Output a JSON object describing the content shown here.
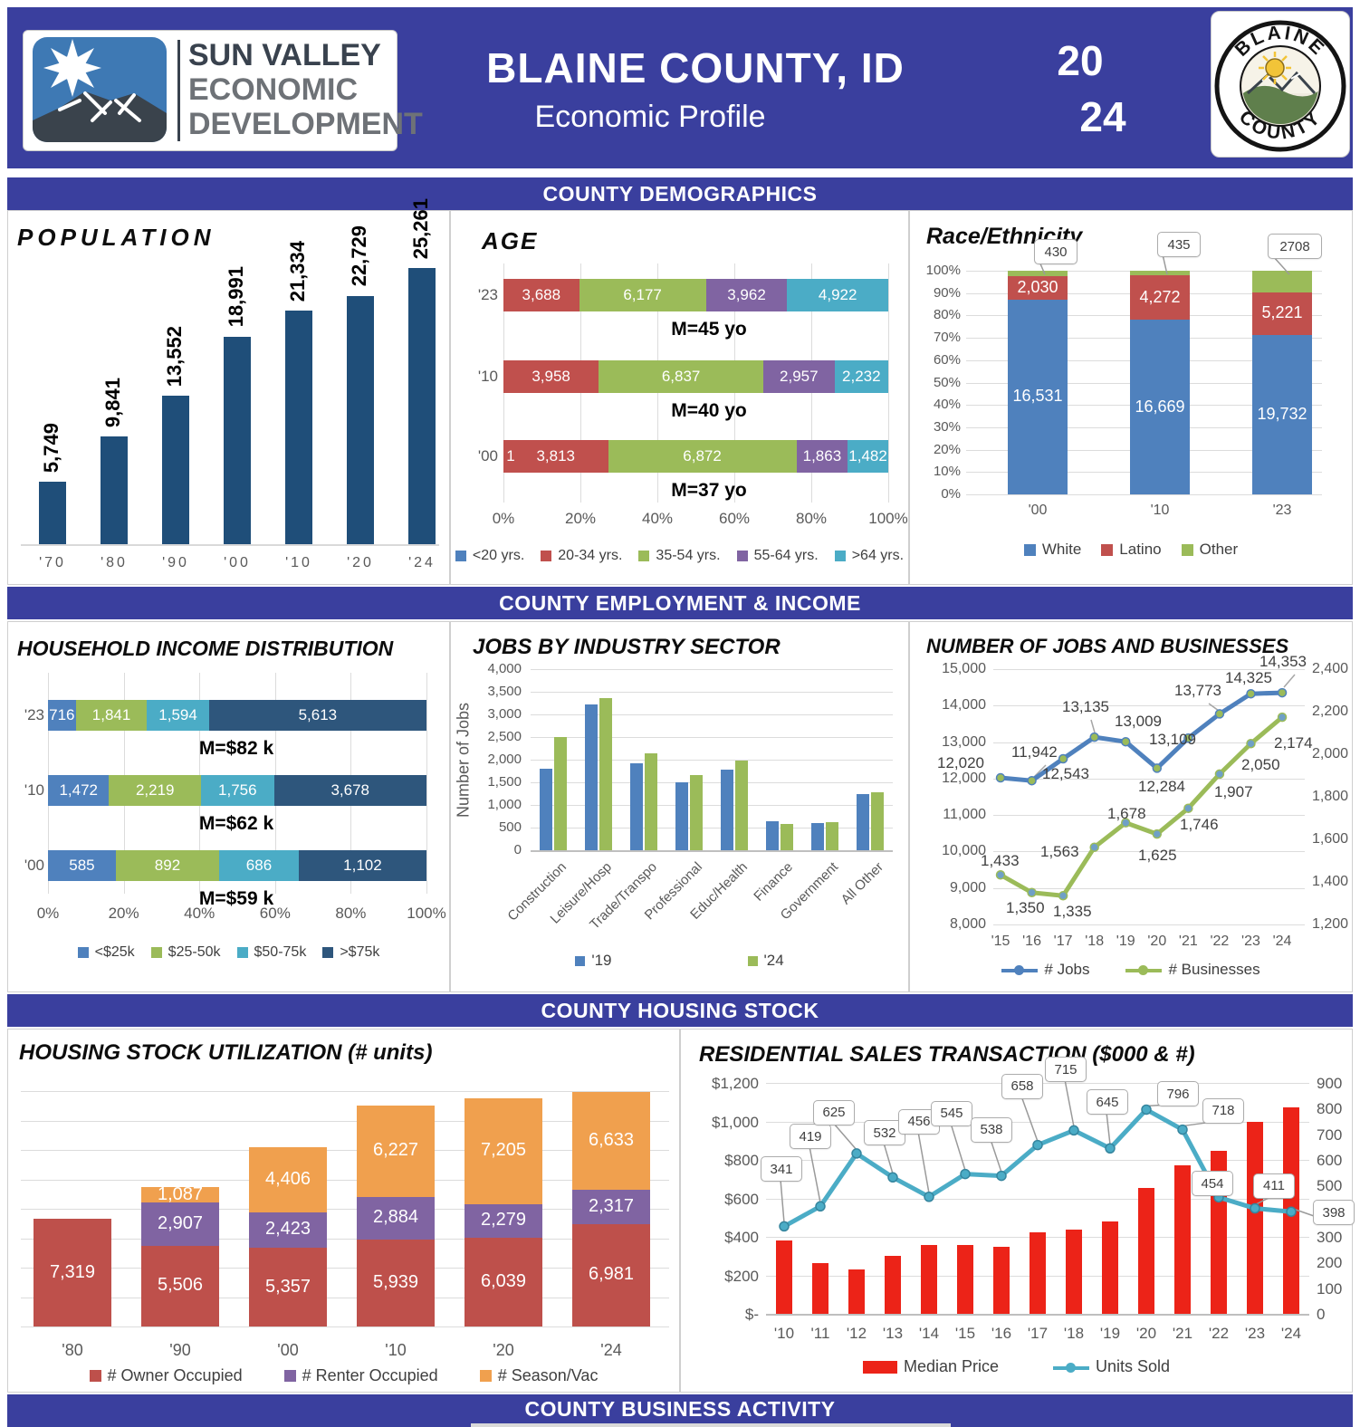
{
  "header": {
    "title": "BLAINE COUNTY, ID",
    "subtitle": "Economic Profile",
    "year_line1": "20",
    "year_line2": "24",
    "left_logo": {
      "line1": "SUN VALLEY",
      "line2": "ECONOMIC",
      "line3": "DEVELOPMENT"
    },
    "seal": {
      "top": "BLAINE",
      "bottom": "COUNTY"
    }
  },
  "banners": {
    "demographics": "COUNTY DEMOGRAPHICS",
    "employment": "COUNTY EMPLOYMENT & INCOME",
    "housing": "COUNTY HOUSING STOCK",
    "business": "COUNTY BUSINESS ACTIVITY"
  },
  "colors": {
    "band": "#3A3F9E",
    "blue": "#4F81BD",
    "red": "#C0504D",
    "green": "#9BBB59",
    "purple": "#8064A2",
    "teal": "#4BACC6",
    "orange": "#F0A04E",
    "navy": "#1F4E79"
  },
  "chart_data": {
    "population": {
      "type": "bar",
      "title": "POPULATION",
      "categories": [
        "'70",
        "'80",
        "'90",
        "'00",
        "'10",
        "'20",
        "'24"
      ],
      "values": [
        5749,
        9841,
        13552,
        18991,
        21334,
        22729,
        25261
      ],
      "bar_color": "#1F4E79"
    },
    "age": {
      "type": "stacked-bar-h-100",
      "title": "AGE",
      "rows": [
        "'23",
        "'10",
        "'00"
      ],
      "series": [
        "<20 yrs.",
        "20-34 yrs.",
        "35-54 yrs.",
        "55-64 yrs.",
        ">64 yrs."
      ],
      "series_colors": [
        "#4F81BD",
        "#C0504D",
        "#9BBB59",
        "#8064A2",
        "#4BACC6"
      ],
      "values": [
        [
          0,
          3688,
          6177,
          3962,
          4922
        ],
        [
          0,
          3958,
          6837,
          2957,
          2232
        ],
        [
          0,
          3813,
          6872,
          1863,
          1482
        ]
      ],
      "leading_labels": [
        "",
        "",
        "1"
      ],
      "median_notes": [
        "M=45 yo",
        "M=40 yo",
        "M=37 yo"
      ],
      "x_ticks": [
        "0%",
        "20%",
        "40%",
        "60%",
        "80%",
        "100%"
      ]
    },
    "race": {
      "type": "stacked-column-100",
      "title": "Race/Ethnicity",
      "categories": [
        "'00",
        "'10",
        "'23"
      ],
      "series": [
        {
          "name": "White",
          "color": "#4F81BD",
          "values": [
            16531,
            16669,
            19732
          ]
        },
        {
          "name": "Latino",
          "color": "#C0504D",
          "values": [
            2030,
            4272,
            5221
          ]
        },
        {
          "name": "Other",
          "color": "#9BBB59",
          "values": [
            430,
            435,
            2708
          ]
        }
      ],
      "other_callouts": [
        "430",
        "435",
        "2708"
      ],
      "y_ticks": [
        "100%",
        "90%",
        "80%",
        "70%",
        "60%",
        "50%",
        "40%",
        "30%",
        "20%",
        "10%",
        "0%"
      ]
    },
    "income": {
      "type": "stacked-bar-h-100",
      "title": "HOUSEHOLD INCOME DISTRIBUTION",
      "rows": [
        "'23",
        "'10",
        "'00"
      ],
      "series": [
        "<$25k",
        "$25-50k",
        "$50-75k",
        ">$75k"
      ],
      "series_colors": [
        "#4F81BD",
        "#9BBB59",
        "#4BACC6",
        "#2E567C"
      ],
      "values": [
        [
          716,
          1841,
          1594,
          5613
        ],
        [
          1472,
          2219,
          1756,
          3678
        ],
        [
          585,
          892,
          686,
          1102
        ]
      ],
      "leading_labels": [
        "",
        "",
        ""
      ],
      "median_notes": [
        "M=$82 k",
        "M=$62 k",
        "M=$59 k"
      ],
      "x_ticks": [
        "0%",
        "20%",
        "40%",
        "60%",
        "80%",
        "100%"
      ]
    },
    "jobs_sector": {
      "type": "grouped-bar",
      "title": "JOBS BY INDUSTRY SECTOR",
      "ylabel": "Number of Jobs",
      "categories": [
        "Construction",
        "Leisure/Hosp",
        "Trade/Transpo",
        "Professional",
        "Educ/Health",
        "Finance",
        "Government",
        "All Other"
      ],
      "series": [
        {
          "name": "'19",
          "color": "#4F81BD",
          "values": [
            1800,
            3220,
            1920,
            1500,
            1780,
            650,
            610,
            1250
          ]
        },
        {
          "name": "'24",
          "color": "#9BBB59",
          "values": [
            2500,
            3360,
            2140,
            1660,
            1990,
            580,
            615,
            1290
          ]
        }
      ],
      "y_ticks": [
        "4,000",
        "3,500",
        "3,000",
        "2,500",
        "2,000",
        "1,500",
        "1,000",
        "500",
        "0"
      ],
      "ylim": [
        0,
        4000
      ]
    },
    "jobs_businesses": {
      "type": "line",
      "title": "NUMBER OF JOBS AND BUSINESSES",
      "x": [
        "'15",
        "'16",
        "'17",
        "'18",
        "'19",
        "'20",
        "'21",
        "'22",
        "'23",
        "'24"
      ],
      "series": [
        {
          "name": "# Jobs",
          "axis": "left",
          "color": "#4F81BD",
          "values": [
            12020,
            11942,
            12543,
            13135,
            13009,
            12284,
            13109,
            13773,
            14325,
            14353
          ]
        },
        {
          "name": "# Businesses",
          "axis": "right",
          "color": "#9BBB59",
          "values": [
            1433,
            1350,
            1335,
            1563,
            1678,
            1625,
            1746,
            1907,
            2050,
            2174
          ]
        }
      ],
      "left_axis": {
        "min": 8000,
        "max": 15000,
        "ticks": [
          "15,000",
          "14,000",
          "13,000",
          "12,000",
          "11,000",
          "10,000",
          "9,000",
          "8,000"
        ]
      },
      "right_axis": {
        "min": 1200,
        "max": 2400,
        "ticks": [
          "2,400",
          "2,200",
          "2,000",
          "1,800",
          "1,600",
          "1,400",
          "1,200"
        ]
      }
    },
    "housing": {
      "type": "stacked-column",
      "title": "HOUSING STOCK UTILIZATION (# units)",
      "categories": [
        "'80",
        "'90",
        "'00",
        "'10",
        "'20",
        "'24"
      ],
      "series": [
        {
          "name": "# Owner Occupied",
          "color": "#BE504B",
          "values": [
            7319,
            5506,
            5357,
            5939,
            6039,
            6981
          ]
        },
        {
          "name": "# Renter Occupied",
          "color": "#8064A2",
          "values": [
            0,
            2907,
            2423,
            2884,
            2279,
            2317
          ]
        },
        {
          "name": "# Season/Vac",
          "color": "#F0A04E",
          "values": [
            0,
            1087,
            4406,
            6227,
            7205,
            6633
          ]
        }
      ],
      "ylim": [
        0,
        17000
      ]
    },
    "residential": {
      "type": "bar-line",
      "title": "RESIDENTIAL SALES TRANSACTION ($000 & #)",
      "categories": [
        "'10",
        "'11",
        "'12",
        "'13",
        "'14",
        "'15",
        "'16",
        "'17",
        "'18",
        "'19",
        "'20",
        "'21",
        "'22",
        "'23",
        "'24"
      ],
      "bars": {
        "name": "Median Price",
        "color": "#EC2318",
        "values": [
          380,
          265,
          230,
          300,
          360,
          360,
          350,
          425,
          440,
          480,
          655,
          770,
          845,
          1000,
          1075
        ]
      },
      "line": {
        "name": "Units Sold",
        "color": "#4BACC6",
        "values": [
          341,
          419,
          625,
          532,
          456,
          545,
          538,
          658,
          715,
          645,
          796,
          718,
          454,
          411,
          398
        ]
      },
      "left_axis": {
        "min": 0,
        "max": 1200,
        "ticks": [
          "$1,200",
          "$1,000",
          "$800",
          "$600",
          "$400",
          "$200",
          "$-"
        ]
      },
      "right_axis": {
        "min": 0,
        "max": 900,
        "ticks": [
          "900",
          "800",
          "700",
          "600",
          "500",
          "400",
          "300",
          "200",
          "100",
          "0"
        ]
      }
    }
  }
}
